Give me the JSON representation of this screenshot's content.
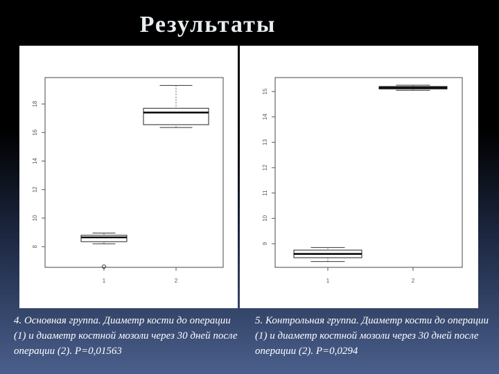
{
  "title": "Результаты",
  "chart_data": [
    {
      "type": "boxplot",
      "categories": [
        "1",
        "2"
      ],
      "boxes": [
        {
          "min": 8.2,
          "q1": 8.35,
          "median": 8.65,
          "q3": 8.8,
          "max": 8.95,
          "outliers": [
            6.6
          ]
        },
        {
          "min": 16.35,
          "q1": 16.55,
          "median": 17.4,
          "q3": 17.7,
          "max": 19.3,
          "outliers": []
        }
      ],
      "ylim": [
        6.55,
        19.85
      ],
      "yticks": [
        8,
        10,
        12,
        14,
        16,
        18
      ],
      "caption": "4. Основная группа. Диаметр кости до операции (1) и диаметр костной мозоли через 30 дней после операции (2). P=0,01563"
    },
    {
      "type": "boxplot",
      "categories": [
        "1",
        "2"
      ],
      "boxes": [
        {
          "min": 8.3,
          "q1": 8.45,
          "median": 8.6,
          "q3": 8.75,
          "max": 8.85,
          "outliers": []
        },
        {
          "min": 15.05,
          "q1": 15.1,
          "median": 15.15,
          "q3": 15.2,
          "max": 15.25,
          "outliers": []
        }
      ],
      "ylim": [
        8.07,
        15.55
      ],
      "yticks": [
        9,
        10,
        11,
        12,
        13,
        14,
        15
      ],
      "caption": "5. Контрольная группа. Диаметр кости до операции (1) и диаметр костной мозоли через 30 дней после операции (2). P=0,0294"
    }
  ]
}
